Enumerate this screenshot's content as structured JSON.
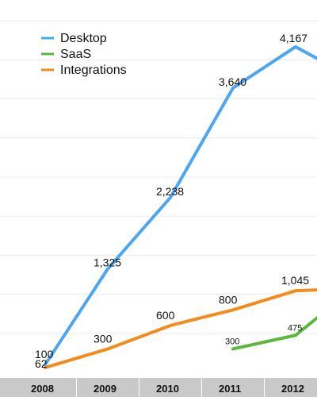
{
  "chart_data": {
    "type": "line",
    "title": "",
    "xlabel": "",
    "ylabel": "",
    "categories": [
      "2008",
      "2009",
      "2010",
      "2011",
      "2012"
    ],
    "x": [
      2008,
      2009,
      2010,
      2011,
      2012
    ],
    "ylim": [
      0,
      4500
    ],
    "grid": true,
    "legend": {
      "placement": "top-left"
    },
    "series": [
      {
        "name": "Desktop",
        "color": "#4da6f0",
        "points": [
          {
            "x": 2008,
            "y": 100,
            "label": "100"
          },
          {
            "x": 2009,
            "y": 1325,
            "label": "1,325"
          },
          {
            "x": 2010,
            "y": 2238,
            "label": "2,238"
          },
          {
            "x": 2011,
            "y": 3640,
            "label": "3,640"
          },
          {
            "x": 2012,
            "y": 4167,
            "label": "4,167"
          },
          {
            "x": 2012.5,
            "y": 3950,
            "label": ""
          }
        ]
      },
      {
        "name": "SaaS",
        "color": "#5cb83c",
        "points": [
          {
            "x": 2011,
            "y": 300,
            "label": "300"
          },
          {
            "x": 2012,
            "y": 475,
            "label": "475"
          },
          {
            "x": 2012.5,
            "y": 800,
            "label": ""
          }
        ]
      },
      {
        "name": "Integrations",
        "color": "#f28c1a",
        "points": [
          {
            "x": 2008,
            "y": 62,
            "label": "62"
          },
          {
            "x": 2009,
            "y": 300,
            "label": "300"
          },
          {
            "x": 2010,
            "y": 600,
            "label": "600"
          },
          {
            "x": 2011,
            "y": 800,
            "label": "800"
          },
          {
            "x": 2012,
            "y": 1045,
            "label": "1,045"
          },
          {
            "x": 2012.5,
            "y": 1060,
            "label": ""
          }
        ]
      }
    ]
  }
}
